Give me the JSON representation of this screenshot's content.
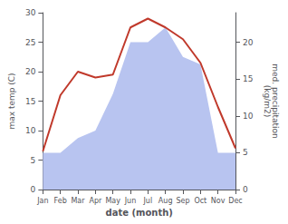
{
  "chart_data": {
    "type": "line",
    "xlabel": "date (month)",
    "ylabel": "max temp (C)",
    "y2label": "med. precipitation\n(kg/m2)",
    "categories": [
      "Jan",
      "Feb",
      "Mar",
      "Apr",
      "May",
      "Jun",
      "Jul",
      "Aug",
      "Sep",
      "Oct",
      "Nov",
      "Dec"
    ],
    "series": [
      {
        "type": "area",
        "axis": "y2",
        "color": "#b8c4f0",
        "values": [
          5.0,
          5.0,
          7.0,
          8.0,
          13.0,
          20.0,
          20.0,
          22.0,
          18.0,
          17.0,
          5.0,
          5.0
        ]
      },
      {
        "type": "line",
        "color": "#c0392b",
        "values": [
          6.5,
          16.0,
          20.0,
          19.0,
          19.5,
          27.5,
          29.0,
          27.5,
          25.5,
          21.5,
          14.0,
          7.0
        ]
      }
    ],
    "ylim": [
      0,
      30
    ],
    "yticks": [
      0,
      5,
      10,
      15,
      20,
      25,
      30
    ],
    "y2lim": [
      0,
      24
    ],
    "y2ticks": [
      0,
      5,
      10,
      15,
      20
    ],
    "grid": false
  }
}
